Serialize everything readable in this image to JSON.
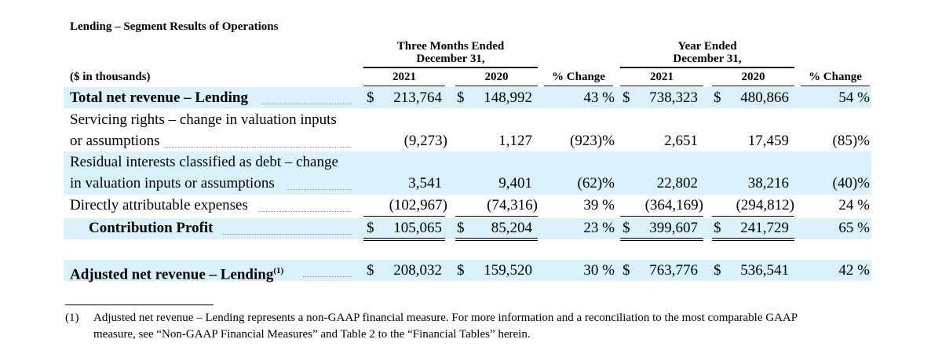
{
  "title": "Lending – Segment Results of Operations",
  "header": {
    "group1_line1": "Three Months Ended",
    "group1_line2": "December 31,",
    "group2_line1": "Year Ended",
    "group2_line2": "December 31,",
    "units": "($ in thousands)",
    "cols": [
      "2021",
      "2020",
      "% Change",
      "2021",
      "2020",
      "% Change"
    ]
  },
  "rows": [
    {
      "label": "Total net revenue – Lending",
      "dollar": "$",
      "q21": "213,764",
      "q20": "148,992",
      "pq": "43 %",
      "y21": "738,323",
      "y20": "480,866",
      "py": "54 %"
    },
    {
      "label1": "Servicing rights – change in valuation inputs",
      "label2": "or assumptions",
      "q21": "(9,273)",
      "q20": "1,127",
      "pq": "(923)%",
      "y21": "2,651",
      "y20": "17,459",
      "py": "(85)%"
    },
    {
      "label1": "Residual interests classified as debt – change",
      "label2": "in valuation inputs or assumptions",
      "q21": "3,541",
      "q20": "9,401",
      "pq": "(62)%",
      "y21": "22,802",
      "y20": "38,216",
      "py": "(40)%"
    },
    {
      "label": "Directly attributable expenses",
      "q21": "(102,967)",
      "q20": "(74,316)",
      "pq": "39 %",
      "y21": "(364,169)",
      "y20": "(294,812)",
      "py": "24 %"
    },
    {
      "label": "Contribution Profit",
      "dollar": "$",
      "q21": "105,065",
      "q20": "85,204",
      "pq": "23 %",
      "y21": "399,607",
      "y20": "241,729",
      "py": "65 %"
    },
    {
      "label": "Adjusted net revenue – Lending",
      "sup": "(1)",
      "dollar": "$",
      "q21": "208,032",
      "q20": "159,520",
      "pq": "30 %",
      "y21": "763,776",
      "y20": "536,541",
      "py": "42 %"
    }
  ],
  "footnote": {
    "marker": "(1)",
    "line1": "Adjusted net revenue – Lending represents a non-GAAP financial measure. For more information and a reconciliation to the most comparable GAAP",
    "line2": "measure, see “Non-GAAP Financial Measures” and Table 2 to the “Financial Tables” herein."
  }
}
